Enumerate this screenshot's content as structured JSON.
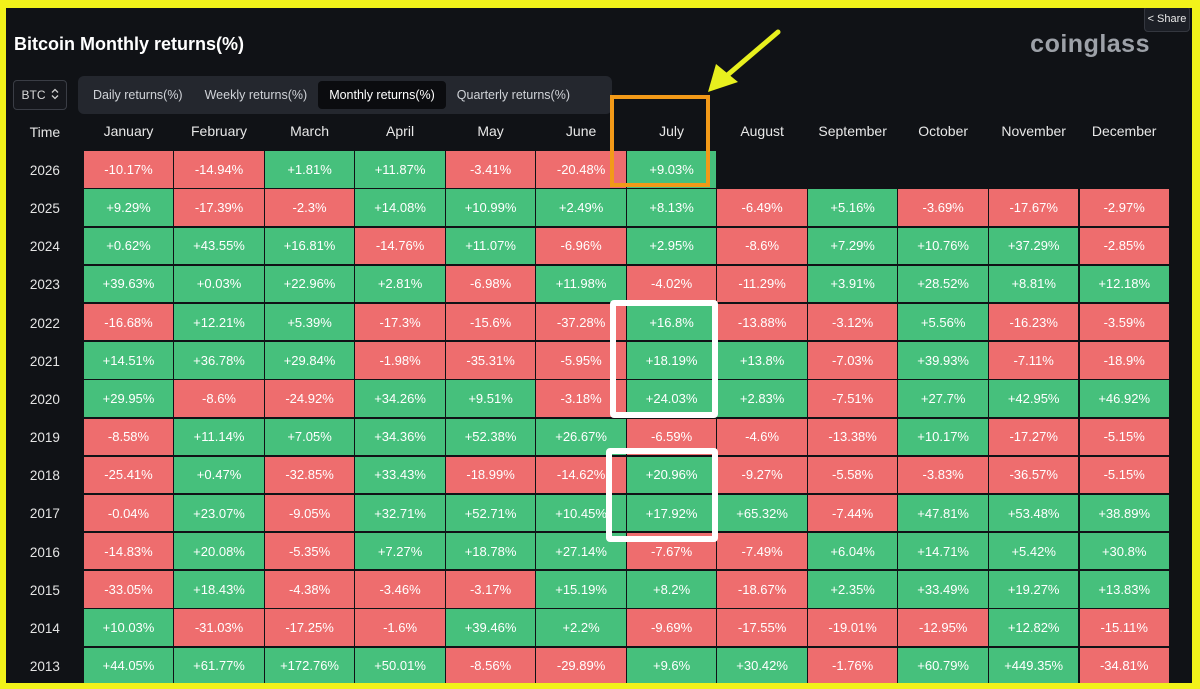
{
  "share_label": "Share",
  "title": "Bitcoin Monthly returns(%)",
  "logo": "coinglass",
  "coin_select": {
    "value": "BTC"
  },
  "tabs": [
    {
      "label": "Daily returns(%)",
      "active": false
    },
    {
      "label": "Weekly returns(%)",
      "active": false
    },
    {
      "label": "Monthly returns(%)",
      "active": true
    },
    {
      "label": "Quarterly returns(%)",
      "active": false
    }
  ],
  "colors": {
    "positive": "#46c07c",
    "negative": "#ee6d6e",
    "highlight_orange": "#f29a18",
    "highlight_white": "#ffffff",
    "arrow": "#e8f01e"
  },
  "table": {
    "columns": [
      "Time",
      "January",
      "February",
      "March",
      "April",
      "May",
      "June",
      "July",
      "August",
      "September",
      "October",
      "November",
      "December"
    ],
    "rows": [
      {
        "year": "2026",
        "values": [
          "-10.17%",
          "-14.94%",
          "+1.81%",
          "+11.87%",
          "-3.41%",
          "-20.48%",
          "+9.03%",
          "",
          "",
          "",
          "",
          ""
        ]
      },
      {
        "year": "2025",
        "values": [
          "+9.29%",
          "-17.39%",
          "-2.3%",
          "+14.08%",
          "+10.99%",
          "+2.49%",
          "+8.13%",
          "-6.49%",
          "+5.16%",
          "-3.69%",
          "-17.67%",
          "-2.97%"
        ]
      },
      {
        "year": "2024",
        "values": [
          "+0.62%",
          "+43.55%",
          "+16.81%",
          "-14.76%",
          "+11.07%",
          "-6.96%",
          "+2.95%",
          "-8.6%",
          "+7.29%",
          "+10.76%",
          "+37.29%",
          "-2.85%"
        ]
      },
      {
        "year": "2023",
        "values": [
          "+39.63%",
          "+0.03%",
          "+22.96%",
          "+2.81%",
          "-6.98%",
          "+11.98%",
          "-4.02%",
          "-11.29%",
          "+3.91%",
          "+28.52%",
          "+8.81%",
          "+12.18%"
        ]
      },
      {
        "year": "2022",
        "values": [
          "-16.68%",
          "+12.21%",
          "+5.39%",
          "-17.3%",
          "-15.6%",
          "-37.28%",
          "+16.8%",
          "-13.88%",
          "-3.12%",
          "+5.56%",
          "-16.23%",
          "-3.59%"
        ]
      },
      {
        "year": "2021",
        "values": [
          "+14.51%",
          "+36.78%",
          "+29.84%",
          "-1.98%",
          "-35.31%",
          "-5.95%",
          "+18.19%",
          "+13.8%",
          "-7.03%",
          "+39.93%",
          "-7.11%",
          "-18.9%"
        ]
      },
      {
        "year": "2020",
        "values": [
          "+29.95%",
          "-8.6%",
          "-24.92%",
          "+34.26%",
          "+9.51%",
          "-3.18%",
          "+24.03%",
          "+2.83%",
          "-7.51%",
          "+27.7%",
          "+42.95%",
          "+46.92%"
        ]
      },
      {
        "year": "2019",
        "values": [
          "-8.58%",
          "+11.14%",
          "+7.05%",
          "+34.36%",
          "+52.38%",
          "+26.67%",
          "-6.59%",
          "-4.6%",
          "-13.38%",
          "+10.17%",
          "-17.27%",
          "-5.15%"
        ]
      },
      {
        "year": "2018",
        "values": [
          "-25.41%",
          "+0.47%",
          "-32.85%",
          "+33.43%",
          "-18.99%",
          "-14.62%",
          "+20.96%",
          "-9.27%",
          "-5.58%",
          "-3.83%",
          "-36.57%",
          "-5.15%"
        ]
      },
      {
        "year": "2017",
        "values": [
          "-0.04%",
          "+23.07%",
          "-9.05%",
          "+32.71%",
          "+52.71%",
          "+10.45%",
          "+17.92%",
          "+65.32%",
          "-7.44%",
          "+47.81%",
          "+53.48%",
          "+38.89%"
        ]
      },
      {
        "year": "2016",
        "values": [
          "-14.83%",
          "+20.08%",
          "-5.35%",
          "+7.27%",
          "+18.78%",
          "+27.14%",
          "-7.67%",
          "-7.49%",
          "+6.04%",
          "+14.71%",
          "+5.42%",
          "+30.8%"
        ]
      },
      {
        "year": "2015",
        "values": [
          "-33.05%",
          "+18.43%",
          "-4.38%",
          "-3.46%",
          "-3.17%",
          "+15.19%",
          "+8.2%",
          "-18.67%",
          "+2.35%",
          "+33.49%",
          "+19.27%",
          "+13.83%"
        ]
      },
      {
        "year": "2014",
        "values": [
          "+10.03%",
          "-31.03%",
          "-17.25%",
          "-1.6%",
          "+39.46%",
          "+2.2%",
          "-9.69%",
          "-17.55%",
          "-19.01%",
          "-12.95%",
          "+12.82%",
          "-15.11%"
        ]
      },
      {
        "year": "2013",
        "values": [
          "+44.05%",
          "+61.77%",
          "+172.76%",
          "+50.01%",
          "-8.56%",
          "-29.89%",
          "+9.6%",
          "+30.42%",
          "-1.76%",
          "+60.79%",
          "+449.35%",
          "-34.81%"
        ]
      }
    ]
  }
}
